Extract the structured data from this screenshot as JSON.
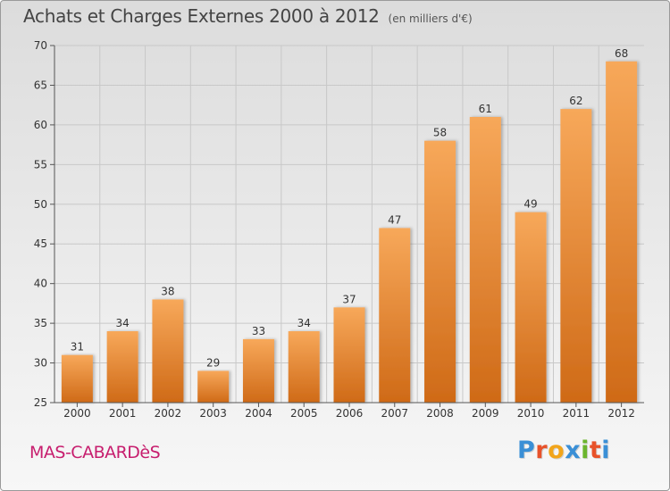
{
  "header": {
    "title": "Achats et Charges Externes 2000 à 2012",
    "subtitle": "(en milliers d'€)"
  },
  "footer": {
    "commune": "MAS-CABARDèS",
    "brand": "Proxiti",
    "brand_letter_colors": [
      "#3a8fd6",
      "#e8522a",
      "#f2a51b",
      "#3a8fd6",
      "#6bb52d",
      "#e8522a",
      "#3a8fd6"
    ]
  },
  "colors": {
    "bar_top": "#f7a85a",
    "bar_bottom": "#cf6a17",
    "axis": "#555555",
    "grid": "#c8c8c8",
    "tick_text": "#333333"
  },
  "chart_data": {
    "type": "bar",
    "title": "Achats et Charges Externes 2000 à 2012",
    "subtitle": "(en milliers d'€)",
    "xlabel": "",
    "ylabel": "",
    "categories": [
      "2000",
      "2001",
      "2002",
      "2003",
      "2004",
      "2005",
      "2006",
      "2007",
      "2008",
      "2009",
      "2010",
      "2011",
      "2012"
    ],
    "values": [
      31,
      34,
      38,
      29,
      33,
      34,
      37,
      47,
      58,
      61,
      49,
      62,
      68
    ],
    "ylim": [
      25,
      70
    ],
    "yticks": [
      25,
      30,
      35,
      40,
      45,
      50,
      55,
      60,
      65,
      70
    ],
    "grid": true
  }
}
